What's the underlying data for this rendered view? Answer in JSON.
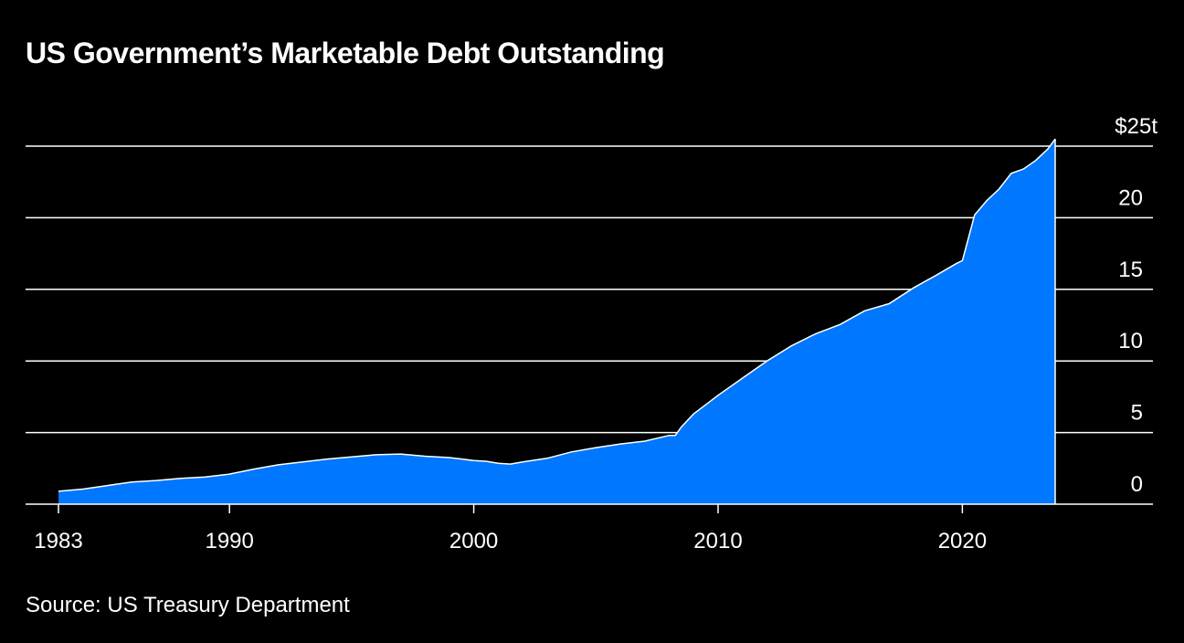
{
  "chart_data": {
    "type": "area",
    "title": "US Government’s Marketable Debt Outstanding",
    "source": "Source: US Treasury Department",
    "xlabel": "",
    "ylabel": "",
    "xlim": [
      1982.0,
      2028.0
    ],
    "ylim": [
      0,
      25
    ],
    "x_ticks": [
      {
        "value": 1983,
        "label": "1983"
      },
      {
        "value": 1990,
        "label": "1990"
      },
      {
        "value": 2000,
        "label": "2000"
      },
      {
        "value": 2010,
        "label": "2010"
      },
      {
        "value": 2020,
        "label": "2020"
      }
    ],
    "y_ticks": [
      {
        "value": 0,
        "label": "0"
      },
      {
        "value": 5,
        "label": "5"
      },
      {
        "value": 10,
        "label": "10"
      },
      {
        "value": 15,
        "label": "15"
      },
      {
        "value": 20,
        "label": "20"
      },
      {
        "value": 25,
        "label": "$25t"
      }
    ],
    "grid": true,
    "colors": {
      "background": "#000000",
      "area": "#0077FF",
      "line": "#ffffff",
      "gridline": "#ffffff",
      "text": "#ffffff"
    },
    "series": [
      {
        "values": [
          [
            1983.0,
            0.9
          ],
          [
            1984.0,
            1.05
          ],
          [
            1985.0,
            1.3
          ],
          [
            1986.0,
            1.55
          ],
          [
            1987.0,
            1.65
          ],
          [
            1988.0,
            1.8
          ],
          [
            1989.0,
            1.9
          ],
          [
            1990.0,
            2.1
          ],
          [
            1991.0,
            2.45
          ],
          [
            1992.0,
            2.75
          ],
          [
            1993.0,
            2.95
          ],
          [
            1994.0,
            3.15
          ],
          [
            1995.0,
            3.3
          ],
          [
            1996.0,
            3.45
          ],
          [
            1997.0,
            3.5
          ],
          [
            1998.0,
            3.35
          ],
          [
            1999.0,
            3.25
          ],
          [
            2000.0,
            3.05
          ],
          [
            2000.5,
            3.0
          ],
          [
            2001.0,
            2.85
          ],
          [
            2001.5,
            2.8
          ],
          [
            2002.0,
            2.95
          ],
          [
            2003.0,
            3.2
          ],
          [
            2004.0,
            3.65
          ],
          [
            2005.0,
            3.95
          ],
          [
            2006.0,
            4.2
          ],
          [
            2007.0,
            4.4
          ],
          [
            2008.0,
            4.8
          ],
          [
            2008.25,
            4.8
          ],
          [
            2008.5,
            5.4
          ],
          [
            2009.0,
            6.3
          ],
          [
            2010.0,
            7.6
          ],
          [
            2011.0,
            8.8
          ],
          [
            2012.0,
            10.0
          ],
          [
            2013.0,
            11.05
          ],
          [
            2014.0,
            11.9
          ],
          [
            2015.0,
            12.55
          ],
          [
            2016.0,
            13.5
          ],
          [
            2017.0,
            14.0
          ],
          [
            2018.0,
            15.1
          ],
          [
            2019.0,
            16.05
          ],
          [
            2019.75,
            16.8
          ],
          [
            2020.0,
            17.0
          ],
          [
            2020.25,
            18.6
          ],
          [
            2020.5,
            20.2
          ],
          [
            2021.0,
            21.2
          ],
          [
            2021.5,
            22.0
          ],
          [
            2022.0,
            23.1
          ],
          [
            2022.5,
            23.4
          ],
          [
            2023.0,
            24.0
          ],
          [
            2023.5,
            24.8
          ],
          [
            2023.8,
            25.5
          ]
        ]
      }
    ]
  }
}
